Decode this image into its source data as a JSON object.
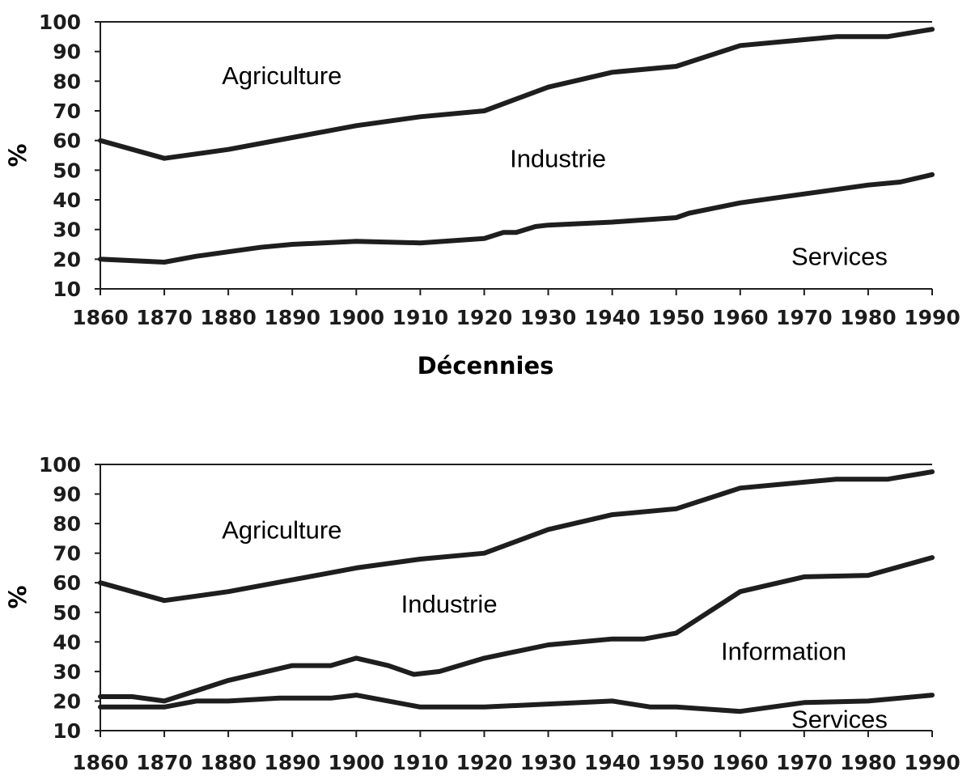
{
  "colors": {
    "line": "#1e1e1e",
    "text": "#111111",
    "background": "#ffffff"
  },
  "chart_data": [
    {
      "type": "line",
      "title": "",
      "xlabel": "Décennies",
      "ylabel": "%",
      "xlim": [
        1860,
        1990
      ],
      "ylim": [
        10,
        100
      ],
      "x_ticks": [
        "1860",
        "1870",
        "1880",
        "1890",
        "1900",
        "1910",
        "1920",
        "1930",
        "1940",
        "1950",
        "1960",
        "1970",
        "1980",
        "1990"
      ],
      "y_ticks": [
        "10",
        "20",
        "30",
        "40",
        "50",
        "60",
        "70",
        "80",
        "90",
        "100"
      ],
      "grid": false,
      "region_labels": [
        {
          "text": "Agriculture",
          "x": 1879,
          "y": 82
        },
        {
          "text": "Industrie",
          "x": 1924,
          "y": 54
        },
        {
          "text": "Services",
          "x": 1968,
          "y": 21
        }
      ],
      "series": [
        {
          "x": [
            1860,
            1870,
            1880,
            1890,
            1895,
            1900,
            1910,
            1920,
            1930,
            1940,
            1950,
            1960,
            1970,
            1975,
            1983,
            1990
          ],
          "values": [
            60,
            54,
            57,
            61,
            63,
            65,
            68,
            70,
            78,
            83,
            85,
            92,
            94,
            95,
            95,
            97.5
          ]
        },
        {
          "x": [
            1860,
            1870,
            1875,
            1885,
            1890,
            1900,
            1910,
            1920,
            1923,
            1925,
            1928,
            1930,
            1940,
            1950,
            1952,
            1960,
            1970,
            1980,
            1985,
            1990
          ],
          "values": [
            20,
            19,
            21,
            24,
            25,
            26,
            25.5,
            27,
            29,
            29,
            31,
            31.5,
            32.5,
            34,
            35.5,
            39,
            42,
            45,
            46,
            48.5
          ]
        }
      ]
    },
    {
      "type": "line",
      "title": "",
      "xlabel": "",
      "ylabel": "%",
      "xlim": [
        1860,
        1990
      ],
      "ylim": [
        10,
        100
      ],
      "x_ticks": [
        "1860",
        "1870",
        "1880",
        "1890",
        "1900",
        "1910",
        "1920",
        "1930",
        "1940",
        "1950",
        "1960",
        "1970",
        "1980",
        "1990"
      ],
      "y_ticks": [
        "10",
        "20",
        "30",
        "40",
        "50",
        "60",
        "70",
        "80",
        "90",
        "100"
      ],
      "grid": false,
      "region_labels": [
        {
          "text": "Agriculture",
          "x": 1879,
          "y": 78
        },
        {
          "text": "Industrie",
          "x": 1907,
          "y": 53
        },
        {
          "text": "Information",
          "x": 1957,
          "y": 37
        },
        {
          "text": "Services",
          "x": 1968,
          "y": 14
        }
      ],
      "series": [
        {
          "x": [
            1860,
            1870,
            1880,
            1890,
            1895,
            1900,
            1910,
            1920,
            1930,
            1940,
            1950,
            1960,
            1970,
            1975,
            1983,
            1990
          ],
          "values": [
            60,
            54,
            57,
            61,
            63,
            65,
            68,
            70,
            78,
            83,
            85,
            92,
            94,
            95,
            95,
            97.5
          ]
        },
        {
          "x": [
            1860,
            1865,
            1870,
            1880,
            1890,
            1896,
            1900,
            1905,
            1909,
            1913,
            1920,
            1930,
            1940,
            1945,
            1950,
            1960,
            1970,
            1980,
            1990
          ],
          "values": [
            21.5,
            21.5,
            20,
            27,
            32,
            32,
            34.5,
            32,
            29,
            30,
            34.5,
            39,
            41,
            41,
            43,
            57,
            62,
            62.5,
            68.5
          ]
        },
        {
          "x": [
            1860,
            1870,
            1875,
            1880,
            1888,
            1896,
            1900,
            1910,
            1920,
            1940,
            1946,
            1950,
            1960,
            1970,
            1980,
            1990
          ],
          "values": [
            18,
            18,
            20,
            20,
            21,
            21,
            22,
            18,
            18,
            20,
            18,
            18,
            16.5,
            19.5,
            20,
            22
          ]
        }
      ]
    }
  ]
}
